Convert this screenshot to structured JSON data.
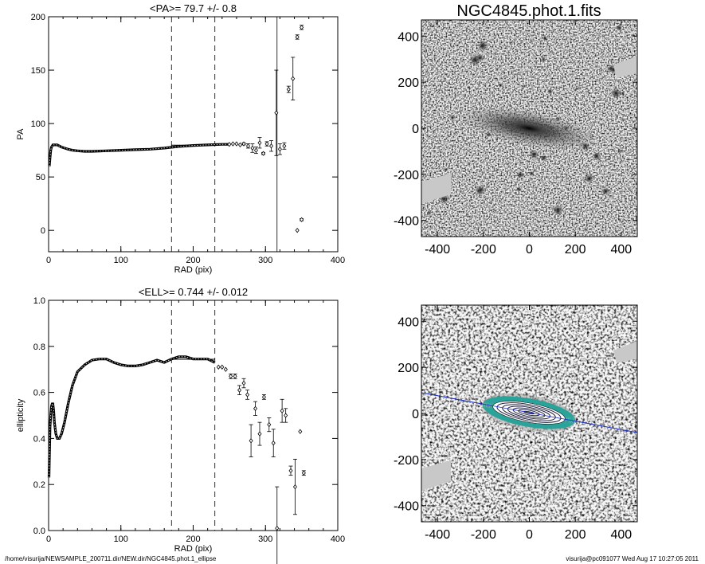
{
  "figure_title": "NGC4845.phot.1.fits",
  "footer": {
    "left": "/home/visurija/NEWSAMPLE_200711.dir/NEW.dir/NGC4845.phot.1_ellipse",
    "right": "visurija@pc091077  Wed Aug 17 10:27:05 2011"
  },
  "chart_data": [
    {
      "type": "scatter",
      "title": "<PA>=  79.7 +/-   0.8",
      "xlabel": "RAD (pix)",
      "ylabel": "PA",
      "xlim": [
        0,
        400
      ],
      "ylim": [
        -20,
        200
      ],
      "xticks": [
        0,
        100,
        200,
        300,
        400
      ],
      "yticks": [
        0,
        50,
        100,
        150,
        200
      ],
      "vlines_dashed": [
        170,
        230
      ],
      "vline_solid": 316,
      "hline_mean": {
        "value": 79.7,
        "x_range": [
          170,
          230
        ]
      },
      "curve": {
        "x": [
          1,
          2,
          3,
          4,
          5,
          6,
          7,
          8,
          10,
          12,
          15,
          18,
          22,
          27,
          33,
          40,
          50,
          60,
          80,
          100,
          120,
          140,
          160,
          180,
          200,
          220,
          240,
          250
        ],
        "y": [
          60,
          68,
          75,
          78,
          79,
          80,
          80,
          80,
          80,
          80,
          79,
          78,
          77,
          76,
          75,
          74.5,
          74,
          74,
          74.5,
          75,
          75.5,
          76,
          77,
          78.5,
          79.5,
          80,
          80.5,
          80.5
        ]
      },
      "points": [
        {
          "x": 250,
          "y": 80.5,
          "err": 0
        },
        {
          "x": 255,
          "y": 81,
          "err": 0
        },
        {
          "x": 260,
          "y": 81,
          "err": 0
        },
        {
          "x": 265,
          "y": 80,
          "err": 0
        },
        {
          "x": 270,
          "y": 81,
          "err": 1
        },
        {
          "x": 276,
          "y": 79,
          "err": 2
        },
        {
          "x": 282,
          "y": 77,
          "err": 4
        },
        {
          "x": 287,
          "y": 75,
          "err": 3
        },
        {
          "x": 292,
          "y": 82,
          "err": 5
        },
        {
          "x": 297,
          "y": 72,
          "err": 1
        },
        {
          "x": 302,
          "y": 81,
          "err": 2
        },
        {
          "x": 308,
          "y": 79,
          "err": 5
        },
        {
          "x": 315,
          "y": 110,
          "err": 40
        },
        {
          "x": 320,
          "y": 76,
          "err": 5
        },
        {
          "x": 326,
          "y": 79,
          "err": 3
        },
        {
          "x": 332,
          "y": 132,
          "err": 3
        },
        {
          "x": 338,
          "y": 142,
          "err": 20
        },
        {
          "x": 344,
          "y": 181,
          "err": 2
        },
        {
          "x": 350,
          "y": 190,
          "err": 2
        },
        {
          "x": 344,
          "y": 0,
          "err": 0
        },
        {
          "x": 350,
          "y": 10,
          "err": 1
        }
      ]
    },
    {
      "type": "scatter",
      "title": "<ELL>= 0.744 +/-  0.012",
      "xlabel": "RAD (pix)",
      "ylabel": "ellipticity",
      "xlim": [
        0,
        400
      ],
      "ylim": [
        0,
        1
      ],
      "xticks": [
        0,
        100,
        200,
        300,
        400
      ],
      "yticks": [
        0.0,
        0.2,
        0.4,
        0.6,
        0.8,
        1.0
      ],
      "vlines_dashed": [
        170,
        230
      ],
      "hline_mean": {
        "value": 0.744,
        "x_range": [
          170,
          230
        ]
      },
      "curve": {
        "x": [
          0.5,
          1,
          1.5,
          2,
          3,
          4,
          5,
          6,
          7,
          8,
          10,
          12,
          15,
          18,
          22,
          27,
          33,
          40,
          50,
          60,
          70,
          80,
          90,
          100,
          110,
          120,
          130,
          140,
          150,
          160,
          170,
          180,
          190,
          200,
          210,
          220,
          230
        ],
        "y": [
          0.23,
          0.3,
          0.38,
          0.45,
          0.5,
          0.54,
          0.55,
          0.55,
          0.52,
          0.47,
          0.42,
          0.4,
          0.4,
          0.42,
          0.47,
          0.55,
          0.63,
          0.69,
          0.72,
          0.74,
          0.745,
          0.745,
          0.73,
          0.72,
          0.715,
          0.715,
          0.72,
          0.73,
          0.74,
          0.73,
          0.745,
          0.755,
          0.755,
          0.745,
          0.745,
          0.745,
          0.73
        ]
      },
      "points": [
        {
          "x": 235,
          "y": 0.71,
          "err": 0
        },
        {
          "x": 240,
          "y": 0.71,
          "err": 0
        },
        {
          "x": 245,
          "y": 0.7,
          "err": 0
        },
        {
          "x": 252,
          "y": 0.67,
          "err": 0.01
        },
        {
          "x": 258,
          "y": 0.67,
          "err": 0.01
        },
        {
          "x": 264,
          "y": 0.61,
          "err": 0.02
        },
        {
          "x": 270,
          "y": 0.64,
          "err": 0.02
        },
        {
          "x": 275,
          "y": 0.59,
          "err": 0.02
        },
        {
          "x": 280,
          "y": 0.39,
          "err": 0.07
        },
        {
          "x": 286,
          "y": 0.53,
          "err": 0.03
        },
        {
          "x": 292,
          "y": 0.42,
          "err": 0.05
        },
        {
          "x": 298,
          "y": 0.58,
          "err": 0.01
        },
        {
          "x": 305,
          "y": 0.46,
          "err": 0.03
        },
        {
          "x": 311,
          "y": 0.38,
          "err": 0.06
        },
        {
          "x": 316,
          "y": 0.01,
          "err": 0.18
        },
        {
          "x": 323,
          "y": 0.52,
          "err": 0.05
        },
        {
          "x": 328,
          "y": 0.5,
          "err": 0.03
        },
        {
          "x": 335,
          "y": 0.26,
          "err": 0.02
        },
        {
          "x": 341,
          "y": 0.19,
          "err": 0.12
        },
        {
          "x": 348,
          "y": 0.43,
          "err": 0
        },
        {
          "x": 353,
          "y": 0.25,
          "err": 0.01
        }
      ]
    },
    {
      "type": "heatmap",
      "title": "NGC4845.phot.1.fits",
      "xlim": [
        -470,
        470
      ],
      "ylim": [
        -470,
        470
      ],
      "xticks": [
        -400,
        -200,
        0,
        200,
        400
      ],
      "yticks": [
        -400,
        -200,
        0,
        200,
        400
      ],
      "colormap": "grayscale",
      "galaxy_position_angle_deg": 79.7,
      "galaxy_ellipticity": 0.744
    },
    {
      "type": "heatmap",
      "title": "",
      "xlim": [
        -470,
        470
      ],
      "ylim": [
        -470,
        470
      ],
      "xticks": [
        -400,
        -200,
        0,
        200,
        400
      ],
      "yticks": [
        -400,
        -200,
        0,
        200,
        400
      ],
      "colormap": "grayscale",
      "contour_color": "#2aa39a",
      "ellipse_color": "#ffffff",
      "major_axis_line_color": "#2233cc",
      "galaxy_position_angle_deg": 79.7,
      "galaxy_ellipticity": 0.744
    }
  ]
}
